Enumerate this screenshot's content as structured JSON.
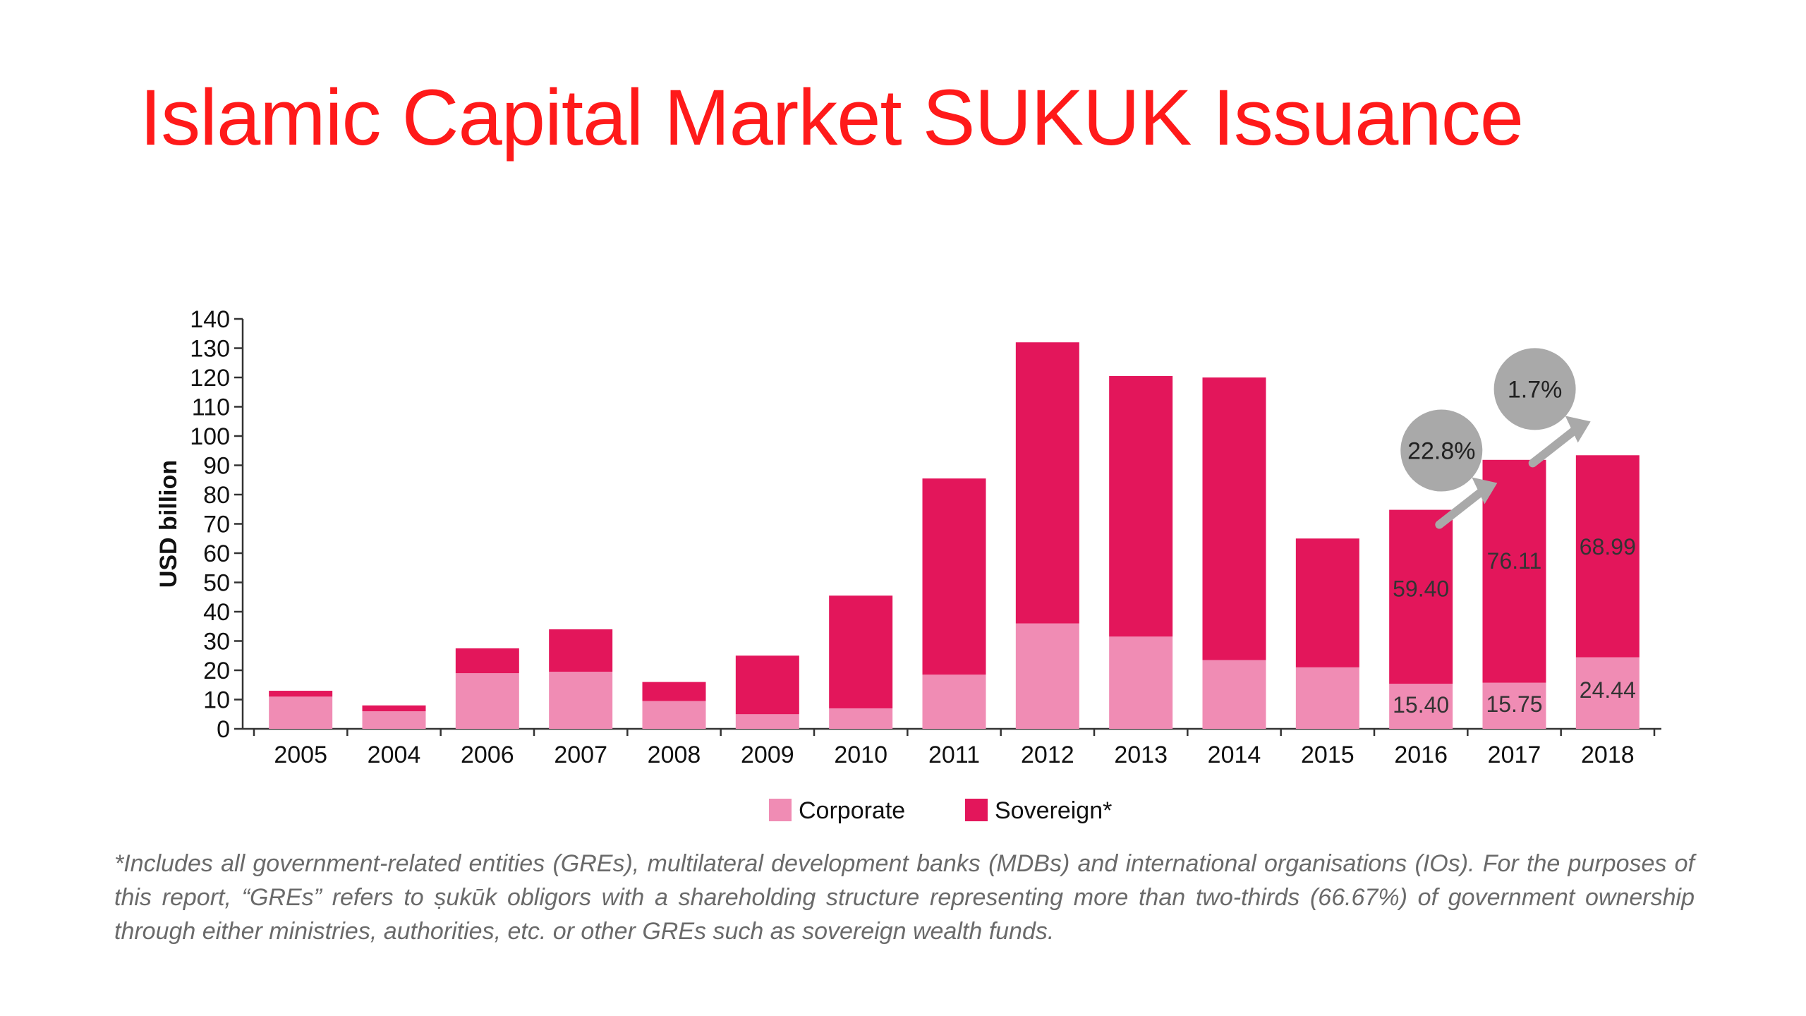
{
  "slide": {
    "title": "Islamic Capital Market SUKUK Issuance",
    "title_color": "#ff1a1a",
    "footnote": "*Includes all government-related entities (GREs), multilateral development banks (MDBs) and international organisations (IOs). For the purposes of this report, “GREs” refers to ṣukūk obligors with a shareholding structure representing more than two-thirds (66.67%) of government ownership through either ministries, authorities, etc. or other GREs such as sovereign wealth funds."
  },
  "chart_data": {
    "type": "bar",
    "stacked": true,
    "title": "",
    "xlabel": "",
    "ylabel": "USD billion",
    "ylim": [
      0,
      140
    ],
    "yticks": [
      0,
      10,
      20,
      30,
      40,
      50,
      60,
      70,
      80,
      90,
      100,
      110,
      120,
      130,
      140
    ],
    "grid": false,
    "legend_position": "bottom-center",
    "categories": [
      "2005",
      "2004",
      "2006",
      "2007",
      "2008",
      "2009",
      "2010",
      "2011",
      "2012",
      "2013",
      "2014",
      "2015",
      "2016",
      "2017",
      "2018"
    ],
    "series": [
      {
        "name": "Corporate",
        "color": "#f08cb4",
        "values": [
          11,
          6,
          19,
          19.5,
          9.5,
          5,
          7,
          18.5,
          36,
          31.5,
          23.5,
          21,
          15.4,
          15.75,
          24.44
        ]
      },
      {
        "name": "Sovereign*",
        "color": "#e3165b",
        "values": [
          2,
          2,
          8.5,
          14.5,
          6.5,
          20,
          38.5,
          67,
          96,
          89,
          96.5,
          44,
          59.4,
          76.11,
          68.99
        ]
      }
    ],
    "data_labels": [
      {
        "category": "2016",
        "series": "Corporate",
        "text": "15.40"
      },
      {
        "category": "2016",
        "series": "Sovereign*",
        "text": "59.40"
      },
      {
        "category": "2017",
        "series": "Corporate",
        "text": "15.75"
      },
      {
        "category": "2017",
        "series": "Sovereign*",
        "text": "76.11"
      },
      {
        "category": "2018",
        "series": "Corporate",
        "text": "24.44"
      },
      {
        "category": "2018",
        "series": "Sovereign*",
        "text": "68.99"
      }
    ],
    "annotations": [
      {
        "text": "22.8%",
        "from": "2016",
        "to": "2017",
        "anchor_y": 83,
        "color": "#a9a9a9"
      },
      {
        "text": "1.7%",
        "from": "2017",
        "to": "2018",
        "anchor_y": 104,
        "color": "#a9a9a9"
      }
    ]
  }
}
